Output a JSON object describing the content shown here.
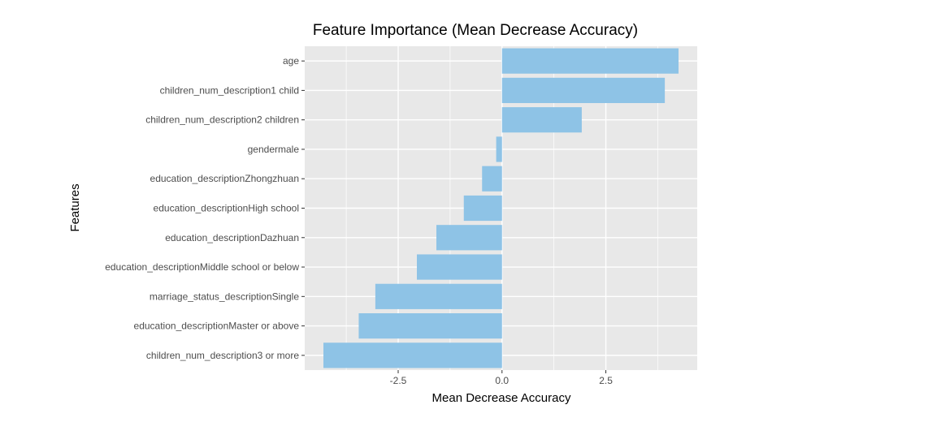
{
  "chart_data": {
    "type": "bar",
    "orientation": "horizontal",
    "title": "Feature Importance (Mean Decrease Accuracy)",
    "xlabel": "Mean Decrease Accuracy",
    "ylabel": "Features",
    "xlim": [
      -4.75,
      4.7
    ],
    "x_ticks": [
      -2.5,
      0.0,
      2.5
    ],
    "x_tick_labels": [
      "-2.5",
      "0.0",
      "2.5"
    ],
    "grid": true,
    "bar_color": "#8ec3e6",
    "panel_color": "#e8e8e8",
    "grid_color": "#ffffff",
    "categories": [
      "age",
      "children_num_description1 child",
      "children_num_description2 children",
      "gendermale",
      "education_descriptionZhongzhuan",
      "education_descriptionHigh school",
      "education_descriptionDazhuan",
      "education_descriptionMiddle school or below",
      "marriage_status_descriptionSingle",
      "education_descriptionMaster or above",
      "children_num_description3 or more"
    ],
    "values": [
      4.25,
      3.92,
      1.92,
      -0.14,
      -0.48,
      -0.92,
      -1.58,
      -2.05,
      -3.05,
      -3.45,
      -4.3
    ]
  }
}
